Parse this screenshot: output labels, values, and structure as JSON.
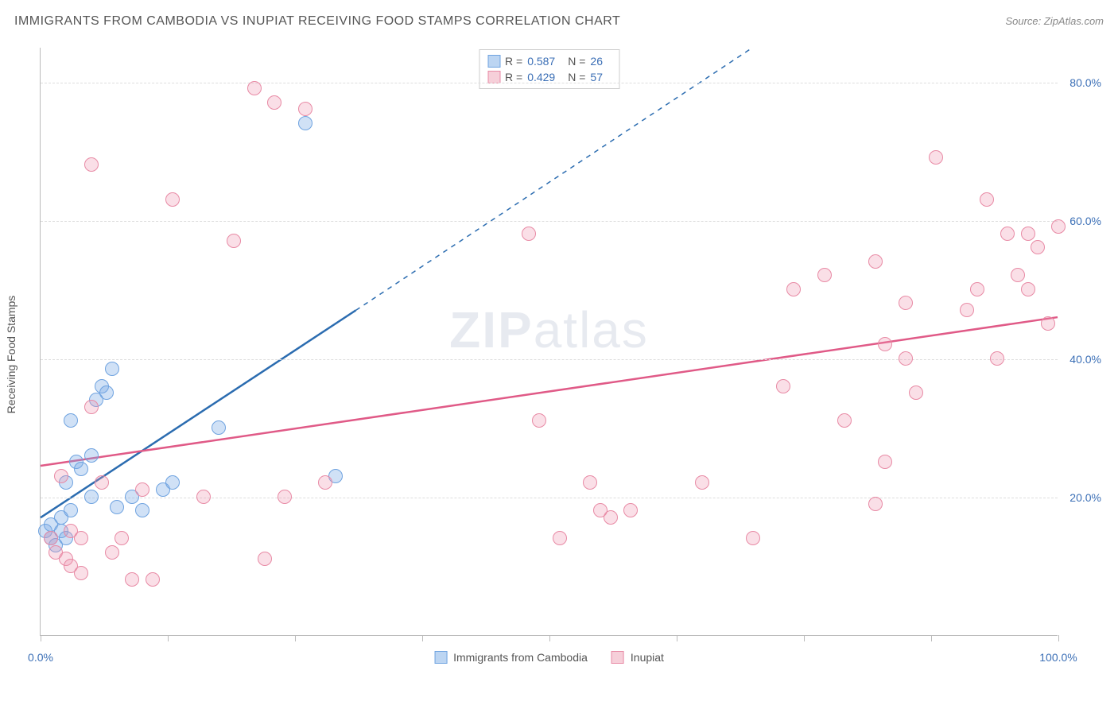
{
  "title": "IMMIGRANTS FROM CAMBODIA VS INUPIAT RECEIVING FOOD STAMPS CORRELATION CHART",
  "source": "Source: ZipAtlas.com",
  "watermark_bold": "ZIP",
  "watermark_rest": "atlas",
  "ylabel": "Receiving Food Stamps",
  "chart": {
    "type": "scatter",
    "xlim": [
      0,
      100
    ],
    "ylim": [
      0,
      85
    ],
    "background_color": "#ffffff",
    "grid_color": "#dddddd",
    "axis_color": "#bbbbbb",
    "tick_label_color": "#3b6fb6",
    "tick_fontsize": 14,
    "yticks": [
      20,
      40,
      60,
      80
    ],
    "ytick_labels": [
      "20.0%",
      "40.0%",
      "60.0%",
      "80.0%"
    ],
    "xticks": [
      0,
      50,
      100
    ],
    "xtick_labels": [
      "0.0%",
      "",
      "100.0%"
    ],
    "xtick_minor": [
      0,
      12.5,
      25,
      37.5,
      50,
      62.5,
      75,
      87.5,
      100
    ],
    "marker_radius": 9,
    "series": [
      {
        "name": "Immigrants from Cambodia",
        "fill": "rgba(120,170,230,0.35)",
        "stroke": "#6fa3e0",
        "swatch_fill": "#bcd5f2",
        "swatch_border": "#6fa3e0",
        "trend_color": "#2b6cb0",
        "trend_width": 2.5,
        "trend_solid": {
          "x1": 0,
          "y1": 17,
          "x2": 31,
          "y2": 47
        },
        "trend_dash": {
          "x1": 31,
          "y1": 47,
          "x2": 70,
          "y2": 85
        },
        "R_label": "R =",
        "R": "0.587",
        "N_label": "N =",
        "N": "26",
        "points": [
          [
            0.5,
            15
          ],
          [
            1,
            16
          ],
          [
            1,
            14
          ],
          [
            1.5,
            13
          ],
          [
            2,
            15
          ],
          [
            2,
            17
          ],
          [
            2.5,
            14
          ],
          [
            2.5,
            22
          ],
          [
            3,
            18
          ],
          [
            3.5,
            25
          ],
          [
            3,
            31
          ],
          [
            4,
            24
          ],
          [
            5,
            26
          ],
          [
            5,
            20
          ],
          [
            5.5,
            34
          ],
          [
            6,
            36
          ],
          [
            6.5,
            35
          ],
          [
            7,
            38.5
          ],
          [
            7.5,
            18.5
          ],
          [
            9,
            20
          ],
          [
            10,
            18
          ],
          [
            12,
            21
          ],
          [
            13,
            22
          ],
          [
            17.5,
            30
          ],
          [
            26,
            74
          ],
          [
            29,
            23
          ]
        ]
      },
      {
        "name": "Inupiat",
        "fill": "rgba(240,150,175,0.3)",
        "stroke": "#e88aa5",
        "swatch_fill": "#f6cfd9",
        "swatch_border": "#e88aa5",
        "trend_color": "#e05a87",
        "trend_width": 2.5,
        "trend_solid": {
          "x1": 0,
          "y1": 24.5,
          "x2": 100,
          "y2": 46
        },
        "trend_dash": null,
        "R_label": "R =",
        "R": "0.429",
        "N_label": "N =",
        "N": "57",
        "points": [
          [
            1,
            14
          ],
          [
            1.5,
            12
          ],
          [
            2,
            23
          ],
          [
            2.5,
            11
          ],
          [
            3,
            15
          ],
          [
            3,
            10
          ],
          [
            4,
            9
          ],
          [
            4,
            14
          ],
          [
            5,
            68
          ],
          [
            5,
            33
          ],
          [
            6,
            22
          ],
          [
            7,
            12
          ],
          [
            8,
            14
          ],
          [
            9,
            8
          ],
          [
            10,
            21
          ],
          [
            11,
            8
          ],
          [
            13,
            63
          ],
          [
            16,
            20
          ],
          [
            19,
            57
          ],
          [
            21,
            79
          ],
          [
            22,
            11
          ],
          [
            23,
            77
          ],
          [
            24,
            20
          ],
          [
            26,
            76
          ],
          [
            28,
            22
          ],
          [
            48,
            58
          ],
          [
            49,
            31
          ],
          [
            51,
            14
          ],
          [
            54,
            22
          ],
          [
            55,
            18
          ],
          [
            56,
            17
          ],
          [
            58,
            18
          ],
          [
            65,
            22
          ],
          [
            70,
            14
          ],
          [
            73,
            36
          ],
          [
            74,
            50
          ],
          [
            77,
            52
          ],
          [
            79,
            31
          ],
          [
            82,
            54
          ],
          [
            82,
            19
          ],
          [
            83,
            25
          ],
          [
            83,
            42
          ],
          [
            85,
            48
          ],
          [
            85,
            40
          ],
          [
            86,
            35
          ],
          [
            88,
            69
          ],
          [
            91,
            47
          ],
          [
            92,
            50
          ],
          [
            93,
            63
          ],
          [
            94,
            40
          ],
          [
            95,
            58
          ],
          [
            96,
            52
          ],
          [
            97,
            58
          ],
          [
            97,
            50
          ],
          [
            98,
            56
          ],
          [
            99,
            45
          ],
          [
            100,
            59
          ]
        ]
      }
    ]
  }
}
